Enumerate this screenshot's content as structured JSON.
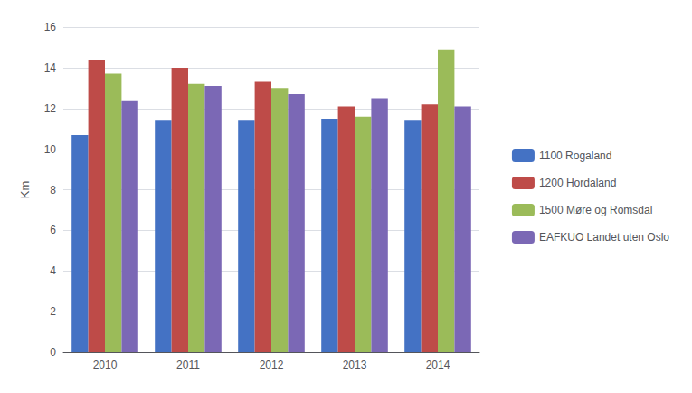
{
  "chart_data": {
    "type": "bar",
    "categories": [
      "2010",
      "2011",
      "2012",
      "2013",
      "2014"
    ],
    "series": [
      {
        "name": "1100 Rogaland",
        "color": "#4472C4",
        "values": [
          10.7,
          11.4,
          11.4,
          11.5,
          11.4
        ]
      },
      {
        "name": "1200 Hordaland",
        "color": "#BE4B48",
        "values": [
          14.4,
          14.0,
          13.3,
          12.1,
          12.2
        ]
      },
      {
        "name": "1500 Møre og Romsdal",
        "color": "#9BBB59",
        "values": [
          13.7,
          13.2,
          13.0,
          11.6,
          14.9
        ]
      },
      {
        "name": "EAFKUO Landet uten Oslo",
        "color": "#7B68B5",
        "values": [
          12.4,
          13.1,
          12.7,
          12.5,
          12.1
        ]
      }
    ],
    "ylabel": "Km",
    "ylim": [
      0,
      16
    ],
    "yticks": [
      0,
      2,
      4,
      6,
      8,
      10,
      12,
      14,
      16
    ],
    "grid": true,
    "legend": "right"
  }
}
